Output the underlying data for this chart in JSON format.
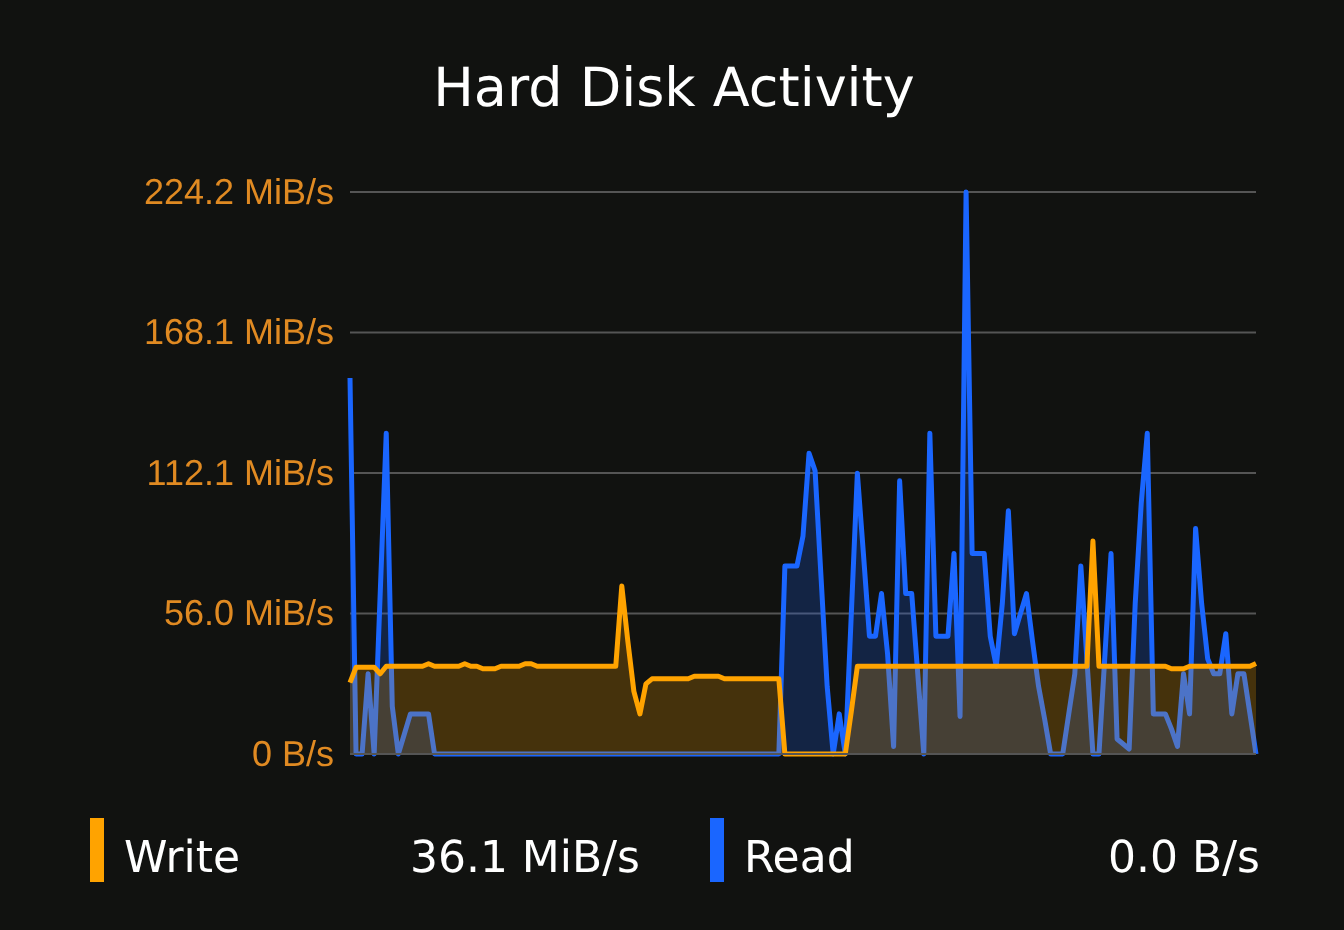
{
  "chart_data": {
    "type": "area",
    "title": "Hard Disk Activity",
    "ylim": [
      0,
      224.2
    ],
    "categories": [
      null,
      null,
      null,
      null,
      null,
      null,
      null,
      null,
      null,
      null,
      null,
      null,
      null,
      null,
      null,
      null,
      null,
      null,
      null,
      null,
      null,
      null,
      null,
      null,
      null,
      null,
      null,
      null,
      null,
      null,
      null,
      null,
      null,
      null,
      null,
      null,
      null,
      null,
      null,
      null,
      null,
      null,
      null,
      null,
      null,
      null,
      null,
      null,
      null,
      null,
      null,
      null,
      null,
      null,
      null,
      null,
      null,
      null,
      null,
      null,
      null,
      null,
      null,
      null,
      null,
      null,
      null,
      null,
      null,
      null,
      null,
      null,
      null,
      null,
      null,
      null,
      null,
      null,
      null,
      null,
      null,
      null,
      null,
      null,
      null,
      null,
      null,
      null,
      null,
      null,
      null,
      null,
      null,
      null,
      null,
      null,
      null,
      null,
      null,
      null,
      null,
      null,
      null,
      null,
      null,
      null,
      null,
      null,
      null,
      null,
      null,
      null,
      null,
      null,
      null,
      null,
      null,
      null,
      null,
      null,
      null,
      null,
      null,
      null,
      null,
      null,
      null,
      null,
      null,
      null,
      null,
      null,
      null,
      null,
      null,
      null,
      null,
      null,
      null,
      null,
      null,
      null,
      null,
      null,
      null,
      null,
      null,
      null,
      null,
      null,
      null
    ],
    "yticks": [
      {
        "value": 0,
        "label": "0 B/s"
      },
      {
        "value": 56.05,
        "label": "56.0 MiB/s"
      },
      {
        "value": 112.1,
        "label": "112.1 MiB/s"
      },
      {
        "value": 168.15,
        "label": "168.1 MiB/s"
      },
      {
        "value": 224.2,
        "label": "224.2 MiB/s"
      }
    ],
    "tick_labels": "y",
    "grid": "y",
    "legend": "bottom",
    "line_style": "solid",
    "annotations": [
      "36.1 MiB/s",
      "0.0 B/s"
    ],
    "series": [
      {
        "name": "Write",
        "color": "#ffa300",
        "values": [
          28.5,
          34.6,
          34.6,
          34.6,
          34.6,
          32,
          35,
          35,
          35,
          35,
          35,
          35,
          35,
          36,
          35,
          35,
          35,
          35,
          35,
          36,
          35,
          35,
          34,
          34,
          34,
          35,
          35,
          35,
          35,
          36,
          36,
          35,
          35,
          35,
          35,
          35,
          35,
          35,
          35,
          35,
          35,
          35,
          35,
          35,
          35,
          67,
          45,
          25,
          16,
          28,
          30,
          30,
          30,
          30,
          30,
          30,
          30,
          31,
          31,
          31,
          31,
          31,
          30,
          30,
          30,
          30,
          30,
          30,
          30,
          30,
          30,
          30,
          0,
          0,
          0,
          0,
          0,
          0,
          0,
          0,
          0,
          0,
          0,
          17,
          35,
          35,
          35,
          35,
          35,
          35,
          35,
          35,
          35,
          35,
          35,
          35,
          35,
          35,
          35,
          35,
          35,
          35,
          35,
          35,
          35,
          35,
          35,
          35,
          35,
          35,
          35,
          35,
          35,
          35,
          35,
          35,
          35,
          35,
          35,
          35,
          35,
          35,
          35,
          85,
          35,
          35,
          35,
          35,
          35,
          35,
          35,
          35,
          35,
          35,
          35,
          35,
          34,
          34,
          34,
          35,
          35,
          35,
          35,
          35,
          35,
          35,
          35,
          35,
          35,
          35,
          36.1
        ]
      },
      {
        "name": "Read",
        "color": "#1a66ff",
        "values": [
          150,
          0,
          0,
          32,
          0,
          64,
          128,
          19,
          0,
          8,
          16,
          16,
          16,
          16,
          0,
          0,
          0,
          0,
          0,
          0,
          0,
          0,
          0,
          0,
          0,
          0,
          0,
          0,
          0,
          0,
          0,
          0,
          0,
          0,
          0,
          0,
          0,
          0,
          0,
          0,
          0,
          0,
          0,
          0,
          0,
          0,
          0,
          0,
          0,
          0,
          0,
          0,
          0,
          0,
          0,
          0,
          0,
          0,
          0,
          0,
          0,
          0,
          0,
          0,
          0,
          0,
          0,
          0,
          0,
          0,
          0,
          0,
          75,
          75,
          75,
          87,
          120,
          113,
          70,
          27,
          0,
          16,
          0,
          56,
          112,
          80,
          47,
          47,
          64,
          40,
          3,
          109,
          64,
          64,
          32,
          0,
          128,
          47,
          47,
          47,
          80,
          15,
          224.2,
          80,
          80,
          80,
          47,
          35,
          60,
          97,
          48,
          56,
          64,
          45,
          27,
          14,
          0,
          0,
          0,
          16,
          32,
          75,
          38,
          0,
          0,
          40,
          80,
          6,
          4,
          2,
          60,
          100,
          128,
          16,
          16,
          16,
          10,
          3,
          32,
          16,
          90,
          60,
          38,
          32,
          32,
          48,
          16,
          32,
          32,
          16,
          0
        ]
      }
    ]
  }
}
